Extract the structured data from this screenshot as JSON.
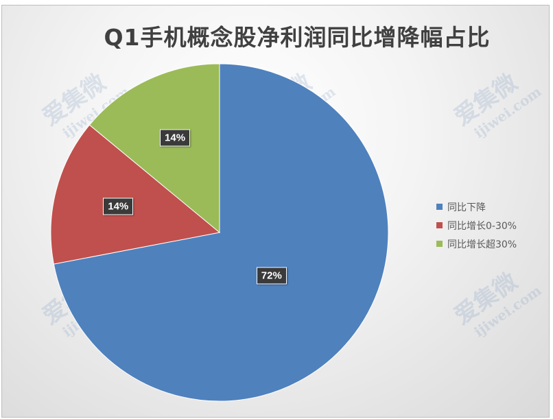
{
  "chart_data": {
    "type": "pie",
    "title": "Q1手机概念股净利润同比增降幅占比",
    "categories": [
      "同比下降",
      "同比增长0-30%",
      "同比增长超30%"
    ],
    "values": [
      72,
      14,
      14
    ],
    "data_labels": [
      "72%",
      "14%",
      "14%"
    ],
    "colors": [
      "#4f81bd",
      "#c0504d",
      "#9bbb59"
    ],
    "legend_position": "right",
    "start": "12 o'clock, clockwise"
  },
  "watermark": {
    "brand": "爱集微",
    "url": "ijiwei.com"
  }
}
